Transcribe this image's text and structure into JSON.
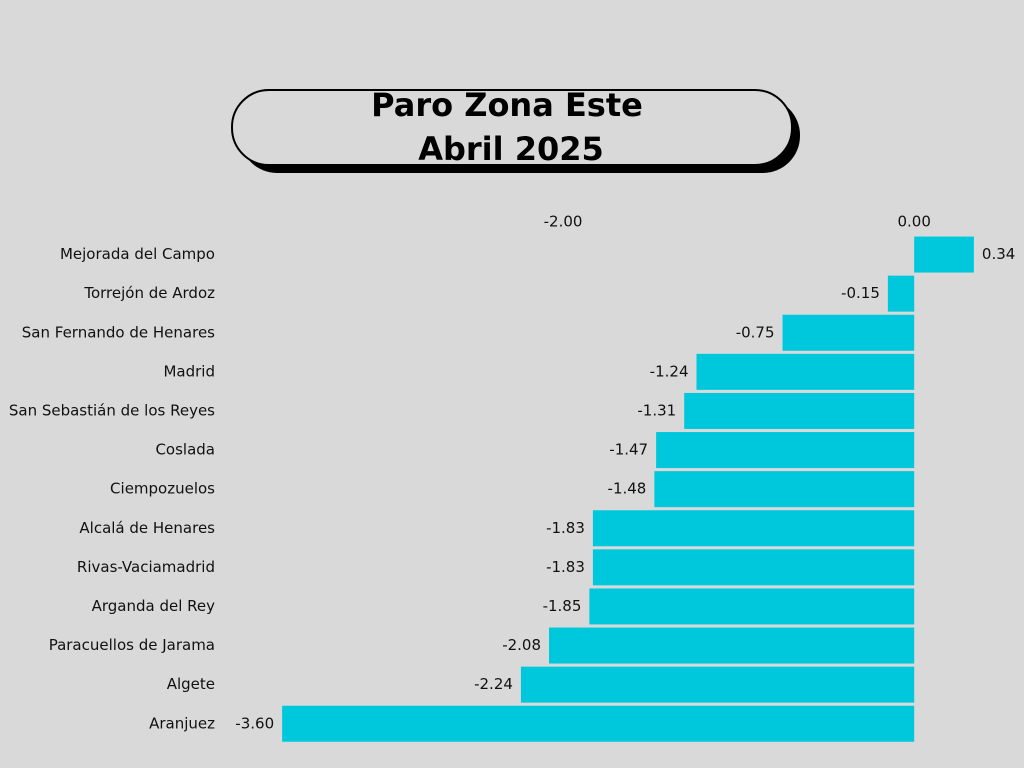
{
  "chart_data": {
    "type": "hbar",
    "title": "Paro Zona Este",
    "subtitle": "Abril 2025",
    "categories": [
      "Mejorada del Campo",
      "Torrejón de Ardoz",
      "San Fernando de Henares",
      "Madrid",
      "San Sebastián de los Reyes",
      "Coslada",
      "Ciempozuelos",
      "Alcalá de Henares",
      "Rivas-Vaciamadrid",
      "Arganda del Rey",
      "Paracuellos de Jarama",
      "Algete",
      "Aranjuez"
    ],
    "values": [
      0.34,
      -0.15,
      -0.75,
      -1.24,
      -1.31,
      -1.47,
      -1.48,
      -1.83,
      -1.83,
      -1.85,
      -2.08,
      -2.24,
      -3.6
    ],
    "value_labels": [
      "0.34",
      "-0.15",
      "-0.75",
      "-1.24",
      "-1.31",
      "-1.47",
      "-1.48",
      "-1.83",
      "-1.83",
      "-1.85",
      "-2.08",
      "-2.24",
      "-3.60"
    ],
    "color": "#00c8dc",
    "xlim": [
      -3.8,
      0.5
    ],
    "xticks": [
      {
        "value": -2,
        "label": "-2.00"
      },
      {
        "value": 0,
        "label": "0.00"
      }
    ]
  }
}
